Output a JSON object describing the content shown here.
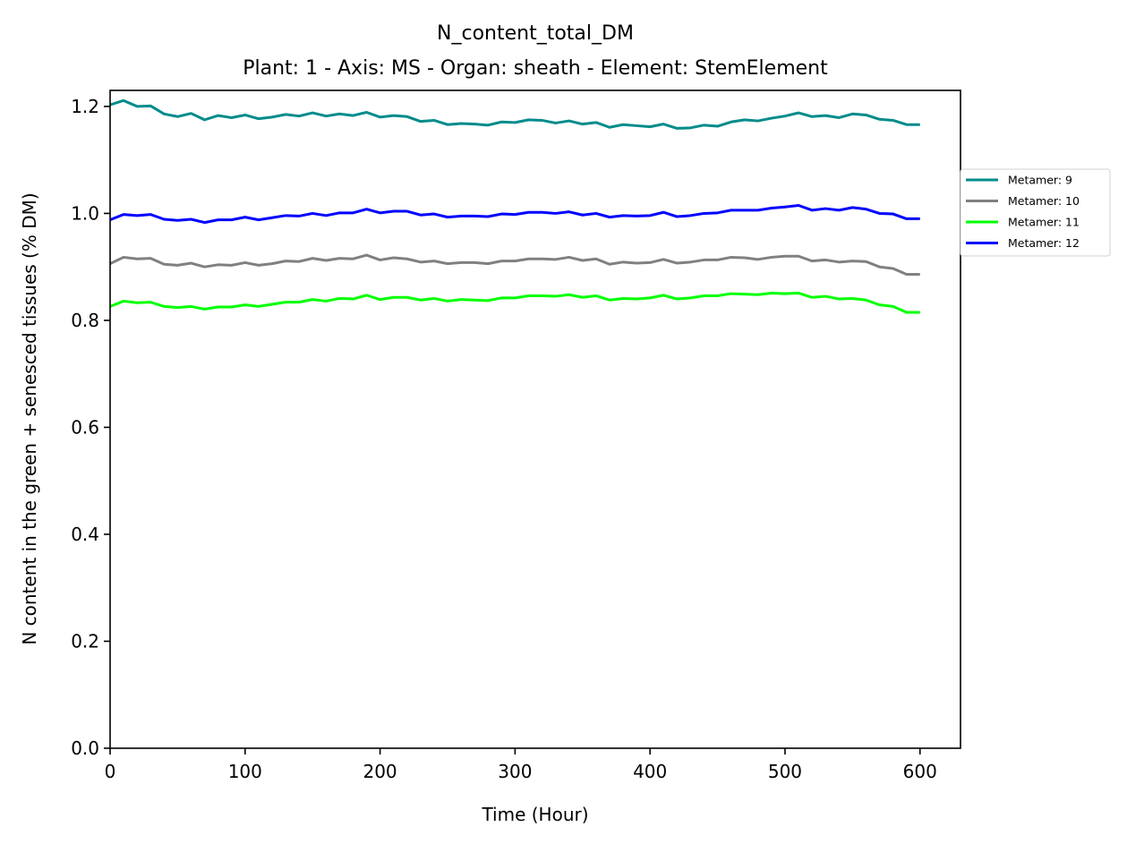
{
  "chart_data": {
    "type": "line",
    "title": "N_content_total_DM",
    "subtitle": "Plant: 1 - Axis: MS - Organ: sheath - Element: StemElement",
    "xlabel": "Time (Hour)",
    "ylabel": "N content in the green + senesced tissues (% DM)",
    "xlim": [
      0,
      630
    ],
    "ylim": [
      0,
      1.23
    ],
    "x_ticks": [
      "0",
      "100",
      "200",
      "300",
      "400",
      "500",
      "600"
    ],
    "y_ticks": [
      "0.0",
      "0.2",
      "0.4",
      "0.6",
      "0.8",
      "1.0",
      "1.2"
    ],
    "grid": false,
    "legend_position": "outside right, upper",
    "x": [
      0,
      10,
      20,
      30,
      40,
      50,
      60,
      70,
      80,
      90,
      100,
      110,
      120,
      130,
      140,
      150,
      160,
      170,
      180,
      190,
      200,
      210,
      220,
      230,
      240,
      250,
      260,
      270,
      280,
      290,
      300,
      310,
      320,
      330,
      340,
      350,
      360,
      370,
      380,
      390,
      400,
      410,
      420,
      430,
      440,
      450,
      460,
      470,
      480,
      490,
      500,
      510,
      520,
      530,
      540,
      550,
      560,
      570,
      580,
      590,
      600
    ],
    "series": [
      {
        "name": "Metamer: 9",
        "color": "#008b8b",
        "values": [
          1.203,
          1.211,
          1.2,
          1.201,
          1.186,
          1.181,
          1.187,
          1.175,
          1.183,
          1.179,
          1.184,
          1.177,
          1.18,
          1.185,
          1.182,
          1.188,
          1.182,
          1.186,
          1.183,
          1.189,
          1.18,
          1.183,
          1.181,
          1.172,
          1.174,
          1.166,
          1.168,
          1.167,
          1.165,
          1.171,
          1.17,
          1.175,
          1.174,
          1.169,
          1.173,
          1.167,
          1.17,
          1.161,
          1.166,
          1.164,
          1.162,
          1.167,
          1.159,
          1.16,
          1.165,
          1.163,
          1.171,
          1.175,
          1.173,
          1.178,
          1.182,
          1.188,
          1.181,
          1.183,
          1.179,
          1.186,
          1.184,
          1.176,
          1.174,
          1.166,
          1.166
        ]
      },
      {
        "name": "Metamer: 10",
        "color": "#808080",
        "values": [
          0.906,
          0.918,
          0.915,
          0.916,
          0.905,
          0.903,
          0.907,
          0.9,
          0.904,
          0.903,
          0.908,
          0.903,
          0.906,
          0.911,
          0.91,
          0.916,
          0.912,
          0.916,
          0.915,
          0.922,
          0.913,
          0.917,
          0.915,
          0.909,
          0.911,
          0.906,
          0.908,
          0.908,
          0.906,
          0.911,
          0.911,
          0.915,
          0.915,
          0.914,
          0.918,
          0.912,
          0.915,
          0.905,
          0.909,
          0.907,
          0.908,
          0.914,
          0.907,
          0.909,
          0.913,
          0.913,
          0.918,
          0.917,
          0.914,
          0.918,
          0.92,
          0.92,
          0.911,
          0.913,
          0.909,
          0.911,
          0.91,
          0.9,
          0.897,
          0.886,
          0.886
        ]
      },
      {
        "name": "Metamer: 11",
        "color": "#00ff00",
        "values": [
          0.826,
          0.836,
          0.833,
          0.834,
          0.826,
          0.824,
          0.826,
          0.821,
          0.825,
          0.825,
          0.829,
          0.826,
          0.83,
          0.834,
          0.834,
          0.839,
          0.836,
          0.841,
          0.84,
          0.847,
          0.839,
          0.843,
          0.843,
          0.838,
          0.841,
          0.836,
          0.839,
          0.838,
          0.837,
          0.842,
          0.842,
          0.846,
          0.846,
          0.845,
          0.848,
          0.843,
          0.846,
          0.838,
          0.841,
          0.84,
          0.842,
          0.847,
          0.84,
          0.842,
          0.846,
          0.846,
          0.85,
          0.849,
          0.848,
          0.851,
          0.85,
          0.851,
          0.843,
          0.845,
          0.84,
          0.841,
          0.838,
          0.829,
          0.826,
          0.815,
          0.815
        ]
      },
      {
        "name": "Metamer: 12",
        "color": "#0000ff",
        "values": [
          0.988,
          0.998,
          0.996,
          0.998,
          0.989,
          0.987,
          0.989,
          0.983,
          0.988,
          0.988,
          0.993,
          0.988,
          0.992,
          0.996,
          0.995,
          1.0,
          0.996,
          1.001,
          1.001,
          1.008,
          1.001,
          1.004,
          1.004,
          0.997,
          0.999,
          0.993,
          0.995,
          0.995,
          0.994,
          0.999,
          0.998,
          1.002,
          1.002,
          1.0,
          1.003,
          0.997,
          1.0,
          0.993,
          0.996,
          0.995,
          0.996,
          1.002,
          0.994,
          0.996,
          1.0,
          1.001,
          1.006,
          1.006,
          1.006,
          1.01,
          1.012,
          1.015,
          1.006,
          1.009,
          1.006,
          1.011,
          1.008,
          1.0,
          0.999,
          0.99,
          0.99
        ]
      }
    ]
  }
}
